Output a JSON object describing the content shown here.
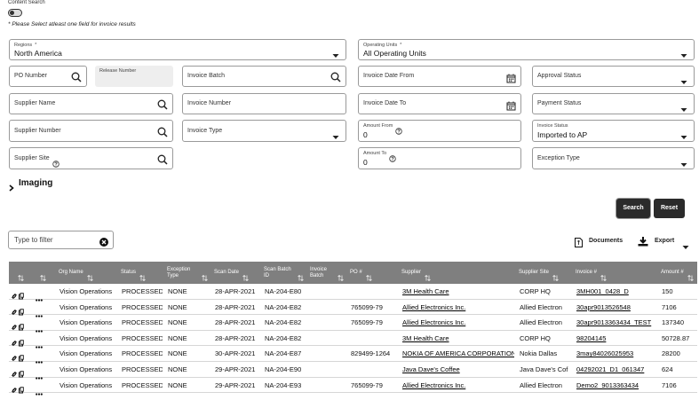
{
  "content_search": "Content Search",
  "notice": "* Please Select atleast one field for invoice results",
  "fields": [
    {
      "label": "Regions",
      "required": "*",
      "value": "North America"
    },
    {
      "label": "Operating Units",
      "required": "*",
      "value": "All Operating Units"
    },
    {
      "label": "PO Number"
    },
    {
      "label": "Release Number"
    },
    {
      "label": "Invoice Batch"
    },
    {
      "label": "Invoice Date From"
    },
    {
      "label": "Approval Status"
    },
    {
      "label": "Supplier Name"
    },
    {
      "label": "Invoice Number"
    },
    {
      "label": "Invoice Date To"
    },
    {
      "label": "Payment Status"
    },
    {
      "label": "Supplier Number"
    },
    {
      "label": "Invoice Type"
    },
    {
      "label": "Amount From",
      "value": 0
    },
    {
      "label": "Invoice Status",
      "value": "Imported to AP"
    },
    {
      "label": "Supplier Site"
    },
    {
      "label": "Amount To",
      "value": 0
    },
    {
      "label": "Exception Type"
    }
  ],
  "imaging": "Imaging",
  "buttons": [
    "Search",
    "Reset"
  ],
  "filter_placeholder": "Type to filter",
  "toolbar": [
    "Documents",
    "Export"
  ],
  "table": {
    "headers": [
      "Org Name",
      "Status",
      "Exception Type",
      "Scan Date",
      "Scan Batch ID",
      "Invoice Batch",
      "PO #",
      "Supplier",
      "Supplier Site",
      "Invoice #",
      "Amount #"
    ],
    "rows": [
      [
        "Vision Operations",
        "PROCESSED",
        "NONE",
        "28-APR-2021",
        "NA-204-E80",
        null,
        null,
        "3M Health Care",
        "CORP HQ",
        "3MH001_0428_D",
        150
      ],
      [
        "Vision Operations",
        "PROCESSED",
        "NONE",
        "28-APR-2021",
        "NA-204-E82",
        null,
        "765099-79",
        "Allied Electronics Inc.",
        "Allied Electron",
        "30apr9013526548",
        7106
      ],
      [
        "Vision Operations",
        "PROCESSED",
        "NONE",
        "28-APR-2021",
        "NA-204-E82",
        null,
        "765099-79",
        "Allied Electronics Inc.",
        "Allied Electron",
        "30apr9013363434_TEST",
        137340
      ],
      [
        "Vision Operations",
        "PROCESSED",
        "NONE",
        "28-APR-2021",
        "NA-204-E82",
        null,
        null,
        "3M Health Care",
        "CORP HQ",
        "98204145",
        50728.87
      ],
      [
        "Vision Operations",
        "PROCESSED",
        "NONE",
        "30-APR-2021",
        "NA-204-E87",
        null,
        "829499-1264",
        "NOKIA OF AMERICA CORPORATION",
        "Nokia Dallas",
        "3may84026025953",
        28200
      ],
      [
        "Vision Operations",
        "PROCESSED",
        "NONE",
        "29-APR-2021",
        "NA-204-E90",
        null,
        null,
        "Java Dave's Coffee",
        "Java Dave's Cof",
        "04292021_D1_061347",
        624
      ],
      [
        "Vision Operations",
        "PROCESSED",
        "NONE",
        "29-APR-2021",
        "NA-204-E93",
        null,
        "765099-79",
        "Allied Electronics Inc.",
        "Allied Electron",
        "Demo2_9013363434",
        7106
      ]
    ]
  }
}
